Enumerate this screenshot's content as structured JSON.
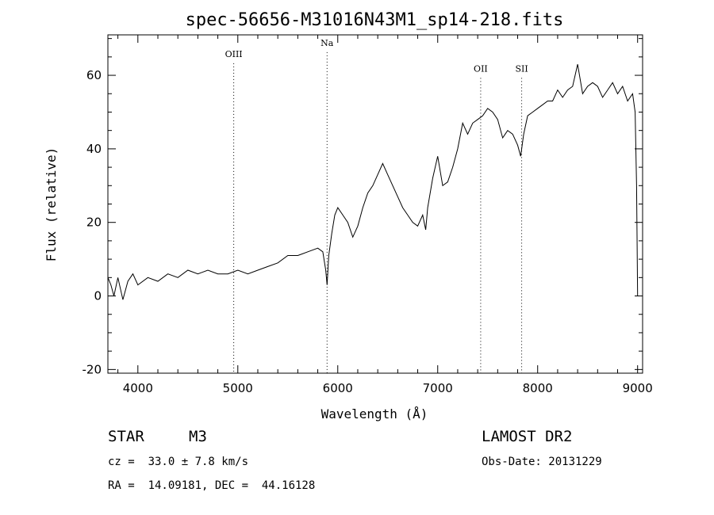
{
  "chart_data": {
    "type": "line",
    "title": "spec-56656-M31016N43M1_sp14-218.fits",
    "xlabel": "Wavelength (Å)",
    "ylabel": "Flux (relative)",
    "xlim": [
      3700,
      9050
    ],
    "ylim": [
      -21,
      71
    ],
    "xticks": [
      4000,
      5000,
      6000,
      7000,
      8000,
      9000
    ],
    "yticks": [
      -20,
      0,
      20,
      40,
      60
    ],
    "grid": false,
    "line_color": "#000000",
    "series": [
      {
        "x": [
          3700,
          3730,
          3760,
          3800,
          3850,
          3900,
          3950,
          4000,
          4100,
          4200,
          4300,
          4400,
          4500,
          4600,
          4700,
          4800,
          4900,
          5000,
          5100,
          5200,
          5300,
          5400,
          5500,
          5600,
          5700,
          5800,
          5850,
          5880,
          5893,
          5910,
          5940,
          5970,
          6000,
          6050,
          6100,
          6150,
          6200,
          6250,
          6300,
          6350,
          6400,
          6450,
          6500,
          6550,
          6600,
          6650,
          6700,
          6750,
          6800,
          6850,
          6880,
          6900,
          6950,
          7000,
          7050,
          7100,
          7150,
          7200,
          7250,
          7300,
          7350,
          7400,
          7450,
          7500,
          7550,
          7600,
          7650,
          7700,
          7750,
          7800,
          7830,
          7860,
          7900,
          7950,
          8000,
          8050,
          8100,
          8150,
          8200,
          8250,
          8300,
          8350,
          8400,
          8450,
          8500,
          8550,
          8600,
          8650,
          8700,
          8750,
          8800,
          8850,
          8900,
          8950,
          8975,
          8990,
          9000
        ],
        "y": [
          5,
          3,
          0,
          5,
          -1,
          4,
          6,
          3,
          5,
          4,
          6,
          5,
          7,
          6,
          7,
          6,
          6,
          7,
          6,
          7,
          8,
          9,
          11,
          11,
          12,
          13,
          12,
          7,
          3,
          11,
          17,
          22,
          24,
          22,
          20,
          16,
          19,
          24,
          28,
          30,
          33,
          36,
          33,
          30,
          27,
          24,
          22,
          20,
          19,
          22,
          18,
          24,
          32,
          38,
          30,
          31,
          35,
          40,
          47,
          44,
          47,
          48,
          49,
          51,
          50,
          48,
          43,
          45,
          44,
          41,
          38,
          44,
          49,
          50,
          51,
          52,
          53,
          53,
          56,
          54,
          56,
          57,
          63,
          55,
          57,
          58,
          57,
          54,
          56,
          58,
          55,
          57,
          53,
          55,
          50,
          30,
          0
        ]
      }
    ],
    "annotations": [
      "OIII",
      "Na",
      "OII",
      "SII"
    ],
    "annotation_x": [
      4959,
      5893,
      7430,
      7840
    ],
    "annotation_level": [
      65,
      68,
      61,
      61
    ]
  },
  "info": {
    "object_class": "STAR",
    "subclass": "M3",
    "survey": "LAMOST DR2",
    "redshift": "cz =  33.0 ± 7.8 km/s",
    "obs_date": "Obs-Date: 20131229",
    "coords": "RA =  14.09181, DEC =  44.16128"
  }
}
